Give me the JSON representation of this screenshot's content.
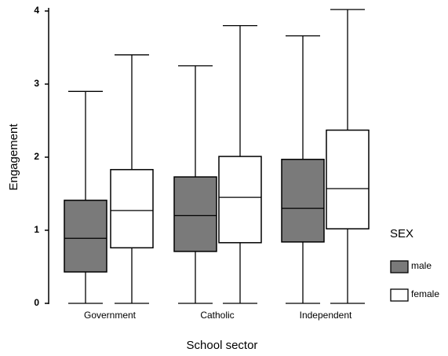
{
  "chart_data": {
    "type": "boxplot",
    "x_label": "School sector",
    "y_label": "Engagement",
    "categories": [
      "Government",
      "Catholic",
      "Independent"
    ],
    "legend_title": "SEX",
    "series": [
      {
        "name": "male",
        "color": "#7a7a7a",
        "values": [
          {
            "min": 0,
            "q1": 0.43,
            "median": 0.89,
            "q3": 1.41,
            "max": 2.9
          },
          {
            "min": 0,
            "q1": 0.71,
            "median": 1.2,
            "q3": 1.73,
            "max": 3.25
          },
          {
            "min": 0,
            "q1": 0.84,
            "median": 1.3,
            "q3": 1.97,
            "max": 3.66
          }
        ]
      },
      {
        "name": "female",
        "color": "#ffffff",
        "values": [
          {
            "min": 0,
            "q1": 0.76,
            "median": 1.27,
            "q3": 1.83,
            "max": 3.4
          },
          {
            "min": 0,
            "q1": 0.83,
            "median": 1.45,
            "q3": 2.01,
            "max": 3.8
          },
          {
            "min": 0,
            "q1": 1.02,
            "median": 1.57,
            "q3": 2.37,
            "max": 4.02
          }
        ]
      }
    ],
    "ylim": [
      0,
      4.05
    ],
    "yticks": [
      0,
      1,
      2,
      3,
      4
    ],
    "grid": false
  }
}
